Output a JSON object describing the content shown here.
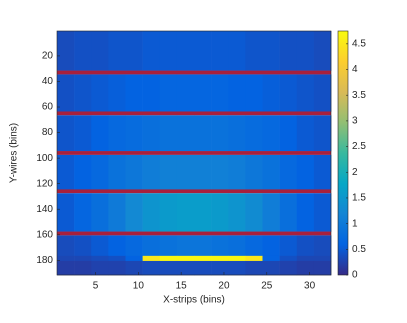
{
  "chart_data": {
    "type": "heatmap",
    "xlabel": "X-strips (bins)",
    "ylabel": "Y-wires (bins)",
    "x_edges": [
      0.5,
      2.5,
      4.5,
      6.5,
      8.5,
      10.5,
      12.5,
      14.5,
      16.5,
      18.5,
      20.5,
      22.5,
      24.5,
      26.5,
      28.5,
      30.5,
      32.5
    ],
    "y_edges": [
      0.5,
      31.5,
      34.5,
      63.5,
      66.5,
      94.5,
      97.5,
      124.5,
      127.5,
      157.5,
      160.5,
      176.5,
      180.5,
      191.5
    ],
    "z": [
      [
        0.35,
        0.4,
        0.4,
        0.45,
        0.45,
        0.5,
        0.5,
        0.5,
        0.5,
        0.5,
        0.5,
        0.45,
        0.45,
        0.4,
        0.4,
        0.35
      ],
      null,
      [
        0.4,
        0.45,
        0.5,
        0.55,
        0.6,
        0.6,
        0.65,
        0.65,
        0.65,
        0.65,
        0.6,
        0.6,
        0.55,
        0.5,
        0.45,
        0.4
      ],
      null,
      [
        0.45,
        0.5,
        0.6,
        0.7,
        0.75,
        0.8,
        0.85,
        0.85,
        0.85,
        0.85,
        0.8,
        0.75,
        0.7,
        0.6,
        0.5,
        0.45
      ],
      null,
      [
        0.5,
        0.6,
        0.7,
        0.85,
        0.95,
        1.05,
        1.1,
        1.1,
        1.1,
        1.1,
        1.05,
        0.95,
        0.85,
        0.7,
        0.6,
        0.5
      ],
      null,
      [
        0.5,
        0.65,
        0.8,
        1.0,
        1.25,
        1.45,
        1.55,
        1.6,
        1.6,
        1.55,
        1.45,
        1.3,
        1.05,
        0.8,
        0.6,
        0.5
      ],
      null,
      [
        0.35,
        0.4,
        0.5,
        0.6,
        0.7,
        0.8,
        0.85,
        0.9,
        0.9,
        0.85,
        0.8,
        0.7,
        0.6,
        0.5,
        0.4,
        0.35
      ],
      [
        0.3,
        0.3,
        0.35,
        0.4,
        0.6,
        4.5,
        4.7,
        4.7,
        4.7,
        4.7,
        4.7,
        4.5,
        0.6,
        0.4,
        0.3,
        0.3
      ],
      [
        0.2,
        0.2,
        0.25,
        0.25,
        0.3,
        0.35,
        0.35,
        0.35,
        0.35,
        0.35,
        0.35,
        0.3,
        0.3,
        0.25,
        0.2,
        0.2
      ]
    ],
    "masked_color": "#a8203c",
    "colormap": [
      "#352a87",
      "#0363e1",
      "#1485d4",
      "#06a7c6",
      "#38b99e",
      "#92bf73",
      "#d9ba56",
      "#fcce2e",
      "#f9fb0e"
    ],
    "xlim": [
      0.5,
      32.5
    ],
    "xticks": [
      5,
      10,
      15,
      20,
      25,
      30
    ],
    "ylim": [
      0.5,
      191.5
    ],
    "y_reversed": true,
    "yticks": [
      20,
      40,
      60,
      80,
      100,
      120,
      140,
      160,
      180
    ],
    "clim": [
      0,
      4.75
    ],
    "cticks": [
      0,
      0.5,
      1,
      1.5,
      2,
      2.5,
      3,
      3.5,
      4,
      4.5
    ]
  }
}
